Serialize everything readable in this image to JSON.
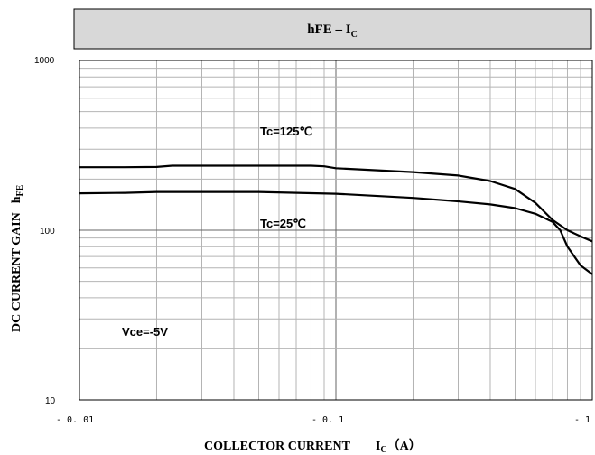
{
  "chart_data": {
    "type": "line",
    "title": {
      "main": "hFE – I",
      "sub": "C"
    },
    "xscale": "log",
    "yscale": "log",
    "xlim": [
      0.01,
      1
    ],
    "ylim": [
      10,
      1000
    ],
    "grid": true,
    "x_ticks": [
      "- 0. 01",
      "- 0. 1",
      "- 1"
    ],
    "y_ticks": [
      "1000",
      "100",
      "10"
    ],
    "xlabel": {
      "main": "COLLECTOR CURRENT",
      "symbol": "I",
      "symbol_sub": "C",
      "unit": "（A）"
    },
    "ylabel": {
      "main": "DC CURRENT GAIN",
      "symbol": "h",
      "symbol_sub": "FE"
    },
    "annotations": [
      "Tc=125℃",
      "Tc=25℃",
      "Vce=-5V"
    ],
    "series": [
      {
        "label": "Tc=125℃",
        "x": [
          0.01,
          0.015,
          0.02,
          0.023,
          0.03,
          0.05,
          0.08,
          0.09,
          0.1,
          0.2,
          0.3,
          0.4,
          0.5,
          0.6,
          0.7,
          0.8,
          0.9,
          1.0
        ],
        "y": [
          235,
          235,
          236,
          240,
          240,
          240,
          240,
          238,
          232,
          220,
          210,
          195,
          175,
          145,
          115,
          100,
          92,
          86
        ]
      },
      {
        "label": "Tc=25℃",
        "x": [
          0.01,
          0.015,
          0.02,
          0.03,
          0.05,
          0.1,
          0.2,
          0.3,
          0.4,
          0.5,
          0.6,
          0.7,
          0.75,
          0.8,
          0.9,
          1.0
        ],
        "y": [
          165,
          166,
          168,
          168,
          168,
          164,
          155,
          148,
          142,
          135,
          125,
          112,
          100,
          80,
          62,
          55
        ]
      }
    ],
    "colors": {
      "line": "#000000",
      "grid": "#b4b4b4",
      "title_bg": "#d8d8d8"
    }
  }
}
